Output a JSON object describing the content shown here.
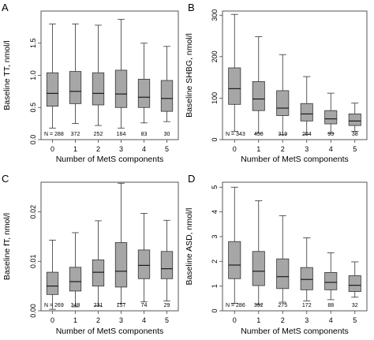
{
  "chart_data": [
    {
      "panel": "A",
      "type": "box",
      "xlabel": "Number of MetS components",
      "ylabel": "Baseline TT, nmol/l",
      "categories": [
        "0",
        "1",
        "2",
        "3",
        "4",
        "5"
      ],
      "ylim": [
        0,
        2.0
      ],
      "yticks": [
        0,
        0.5,
        1.0,
        1.5
      ],
      "ytick_labels": [
        "0.0",
        "0.5",
        "1.0",
        "1.5"
      ],
      "n_prefix": "N = ",
      "n": [
        "288",
        "372",
        "252",
        "164",
        "83",
        "30"
      ],
      "boxes": [
        {
          "whislo": 0.18,
          "q1": 0.52,
          "med": 0.72,
          "q3": 1.04,
          "whishi": 1.8
        },
        {
          "whislo": 0.25,
          "q1": 0.56,
          "med": 0.75,
          "q3": 1.06,
          "whishi": 1.8
        },
        {
          "whislo": 0.22,
          "q1": 0.54,
          "med": 0.72,
          "q3": 1.04,
          "whishi": 1.78
        },
        {
          "whislo": 0.18,
          "q1": 0.5,
          "med": 0.71,
          "q3": 1.08,
          "whishi": 1.87
        },
        {
          "whislo": 0.26,
          "q1": 0.5,
          "med": 0.66,
          "q3": 0.94,
          "whishi": 1.5
        },
        {
          "whislo": 0.28,
          "q1": 0.44,
          "med": 0.64,
          "q3": 0.92,
          "whishi": 1.45
        }
      ]
    },
    {
      "panel": "B",
      "type": "box",
      "xlabel": "Number of MetS components",
      "ylabel": "Baseline SHBG, nmol/l",
      "categories": [
        "0",
        "1",
        "2",
        "3",
        "4",
        "5"
      ],
      "ylim": [
        0,
        310
      ],
      "yticks": [
        0,
        100,
        200,
        300
      ],
      "ytick_labels": [
        "0",
        "100",
        "200",
        "300"
      ],
      "n_prefix": "N = ",
      "n": [
        "343",
        "450",
        "319",
        "204",
        "93",
        "38"
      ],
      "boxes": [
        {
          "whislo": 20,
          "q1": 85,
          "med": 123,
          "q3": 173,
          "whishi": 302
        },
        {
          "whislo": 15,
          "q1": 70,
          "med": 98,
          "q3": 140,
          "whishi": 248
        },
        {
          "whislo": 12,
          "q1": 58,
          "med": 76,
          "q3": 118,
          "whishi": 205
        },
        {
          "whislo": 12,
          "q1": 45,
          "med": 62,
          "q3": 87,
          "whishi": 152
        },
        {
          "whislo": 15,
          "q1": 38,
          "med": 50,
          "q3": 70,
          "whishi": 112
        },
        {
          "whislo": 20,
          "q1": 34,
          "med": 45,
          "q3": 62,
          "whishi": 88
        }
      ]
    },
    {
      "panel": "C",
      "type": "box",
      "xlabel": "Number of MetS components",
      "ylabel": "Baseline fT, nmol/l",
      "categories": [
        "0",
        "1",
        "2",
        "3",
        "4",
        "5"
      ],
      "ylim": [
        0,
        0.026
      ],
      "yticks": [
        0,
        0.01,
        0.02
      ],
      "ytick_labels": [
        "0.00",
        "0.01",
        "0.02"
      ],
      "n_prefix": "N = ",
      "n": [
        "269",
        "348",
        "231",
        "157",
        "74",
        "29"
      ],
      "boxes": [
        {
          "whislo": 0.0003,
          "q1": 0.0033,
          "med": 0.005,
          "q3": 0.0078,
          "whishi": 0.0143
        },
        {
          "whislo": 0.0008,
          "q1": 0.004,
          "med": 0.0059,
          "q3": 0.0088,
          "whishi": 0.0158
        },
        {
          "whislo": 0.001,
          "q1": 0.005,
          "med": 0.0078,
          "q3": 0.0103,
          "whishi": 0.0182
        },
        {
          "whislo": 0.0015,
          "q1": 0.0048,
          "med": 0.008,
          "q3": 0.0138,
          "whishi": 0.0258
        },
        {
          "whislo": 0.0018,
          "q1": 0.0065,
          "med": 0.0092,
          "q3": 0.0123,
          "whishi": 0.0197
        },
        {
          "whislo": 0.002,
          "q1": 0.0065,
          "med": 0.0085,
          "q3": 0.012,
          "whishi": 0.0183
        }
      ]
    },
    {
      "panel": "D",
      "type": "box",
      "xlabel": "Number of MetS components",
      "ylabel": "Baseline ASD, nmol/l",
      "categories": [
        "0",
        "1",
        "2",
        "3",
        "4",
        "5"
      ],
      "ylim": [
        0,
        5.2
      ],
      "yticks": [
        0,
        1,
        2,
        3,
        4,
        5
      ],
      "ytick_labels": [
        "0",
        "1",
        "2",
        "3",
        "4",
        "5"
      ],
      "n_prefix": "N = ",
      "n": [
        "286",
        "392",
        "275",
        "172",
        "88",
        "32"
      ],
      "boxes": [
        {
          "whislo": 0.3,
          "q1": 1.3,
          "med": 1.85,
          "q3": 2.8,
          "whishi": 5.0
        },
        {
          "whislo": 0.25,
          "q1": 1.02,
          "med": 1.6,
          "q3": 2.4,
          "whishi": 4.45
        },
        {
          "whislo": 0.35,
          "q1": 0.9,
          "med": 1.38,
          "q3": 2.1,
          "whishi": 3.85
        },
        {
          "whislo": 0.4,
          "q1": 0.85,
          "med": 1.27,
          "q3": 1.75,
          "whishi": 2.95
        },
        {
          "whislo": 0.45,
          "q1": 0.85,
          "med": 1.15,
          "q3": 1.55,
          "whishi": 2.35
        },
        {
          "whislo": 0.55,
          "q1": 0.78,
          "med": 1.03,
          "q3": 1.42,
          "whishi": 1.98
        }
      ]
    }
  ]
}
